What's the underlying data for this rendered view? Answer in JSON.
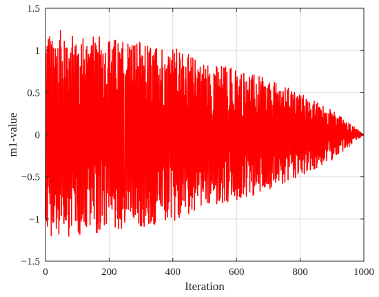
{
  "chart_data": {
    "type": "line",
    "title": "",
    "xlabel": "Iteration",
    "ylabel": "m1-value",
    "xlim": [
      0,
      1000
    ],
    "ylim": [
      -1.5,
      1.5
    ],
    "xticks": [
      0,
      200,
      400,
      600,
      800,
      1000
    ],
    "xtick_labels": [
      "0",
      "200",
      "400",
      "600",
      "800",
      "1000"
    ],
    "yticks": [
      1.5,
      1,
      0.5,
      0,
      -0.5,
      -1,
      -1.5
    ],
    "ytick_labels": [
      "1.5",
      "1",
      "0.5",
      "0",
      "−0.5",
      "−1",
      "−1.5"
    ],
    "grid": true,
    "legend": "none",
    "series": [
      {
        "color": "#ff0000",
        "description_type": "oscillating signal with decaying amplitude",
        "envelope": {
          "x": [
            0,
            50,
            100,
            200,
            300,
            400,
            500,
            600,
            700,
            800,
            900,
            1000
          ],
          "amplitude": [
            1.2,
            1.24,
            1.2,
            1.15,
            1.1,
            1.05,
            0.85,
            0.8,
            0.65,
            0.5,
            0.3,
            0.0
          ]
        }
      }
    ]
  }
}
